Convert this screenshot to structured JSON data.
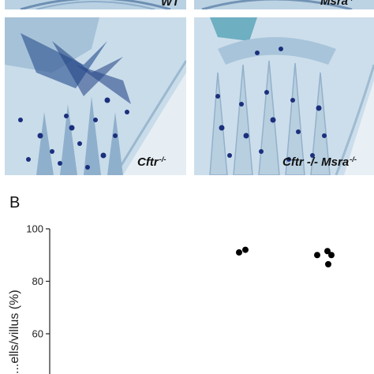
{
  "figure": {
    "panel_b_label": "B",
    "tiles": [
      {
        "id": "wt",
        "label_main": "WT",
        "label_sup": ""
      },
      {
        "id": "msra",
        "label_main": "Msra",
        "label_sup": "-/-"
      },
      {
        "id": "cftr",
        "label_main": "Cftr",
        "label_sup": "-/-"
      },
      {
        "id": "cftr-msra",
        "label_main": "Cftr -/- Msra",
        "label_sup": "-/-"
      }
    ]
  },
  "chart_data": {
    "type": "scatter",
    "title": "",
    "xlabel": "",
    "ylabel": "...ells/villus (%)",
    "ylim": [
      40,
      100
    ],
    "yticks": [
      60,
      80,
      100
    ],
    "series": [
      {
        "group": 3,
        "points": [
          91,
          92
        ]
      },
      {
        "group": 4,
        "points": [
          90,
          91.5,
          90,
          86.5
        ]
      }
    ],
    "colors": {
      "point": "#000000",
      "axis": "#222222"
    }
  }
}
